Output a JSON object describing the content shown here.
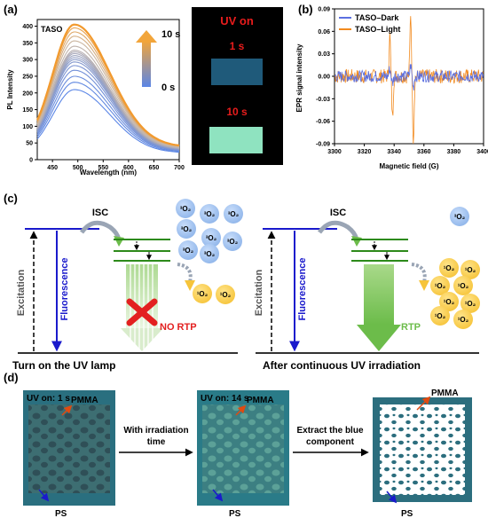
{
  "panel_a": {
    "label": "(a)",
    "sample": "TASO",
    "ylabel": "PL Intensity",
    "xlabel": "Wavelength (nm)",
    "arrow_top": "10 s",
    "arrow_bottom": "0 s",
    "photo_title": "UV on",
    "photo_t1": "1 s",
    "photo_t2": "10 s",
    "colors": {
      "start": "#5b86e6",
      "end": "#f29a2e",
      "photo_bg": "#000000",
      "glow": "#8fe3c0",
      "dim": "#1f5a7a"
    }
  },
  "panel_b": {
    "label": "(b)",
    "ylabel": "EPR signal intensity",
    "xlabel": "Magnetic field (G)",
    "legend": [
      "TASO–Dark",
      "TASO–Light"
    ],
    "colors": {
      "dark": "#5b6fe0",
      "light": "#f28a1e"
    }
  },
  "panel_c": {
    "label": "(c)",
    "left": {
      "isc": "ISC",
      "excitation": "Excitation",
      "fluorescence": "Fluorescence",
      "no_rtp": "NO RTP",
      "caption": "Turn on the UV lamp",
      "triplet_o2": "³O₂",
      "singlet_o2": "¹O₂"
    },
    "right": {
      "isc": "ISC",
      "excitation": "Excitation",
      "fluorescence": "Fluorescence",
      "rtp": "RTP",
      "caption": "After continuous UV irradiation",
      "triplet_o2": "³O₂",
      "singlet_o2": "¹O₂"
    }
  },
  "panel_d": {
    "label": "(d)",
    "img1_title": "UV on: 1 s",
    "img2_title": "UV on: 14 s",
    "arrow1_text": [
      "With irradiation",
      "time"
    ],
    "arrow2_text": [
      "Extract the blue",
      "component"
    ],
    "pmma": "PMMA",
    "ps": "PS"
  },
  "chart_data": [
    {
      "type": "line",
      "title": "",
      "xlabel": "Wavelength (nm)",
      "ylabel": "PL Intensity",
      "xlim": [
        420,
        700
      ],
      "ylim": [
        0,
        420
      ],
      "xticks": [
        450,
        500,
        550,
        600,
        650,
        700
      ],
      "yticks": [
        0,
        50,
        100,
        150,
        200,
        250,
        300,
        350,
        400
      ],
      "x": [
        420,
        430,
        440,
        450,
        460,
        470,
        480,
        490,
        500,
        510,
        520,
        530,
        540,
        550,
        560,
        570,
        580,
        590,
        600,
        610,
        620,
        630,
        640,
        650,
        660,
        670,
        680,
        690,
        700
      ],
      "series_peaks": [
        210,
        232,
        250,
        268,
        282,
        293,
        300,
        306,
        312,
        318,
        323,
        328,
        340,
        356,
        370,
        383,
        395,
        405
      ],
      "series_baseline": [
        20,
        22,
        24,
        25,
        26,
        27,
        28,
        29,
        30,
        30,
        31,
        32,
        34,
        35,
        36,
        37,
        38,
        38
      ],
      "peak_x": 493
    },
    {
      "type": "line",
      "title": "",
      "xlabel": "Magnetic field (G)",
      "ylabel": "EPR signal intensity",
      "xlim": [
        3300,
        3400
      ],
      "ylim": [
        -0.09,
        0.09
      ],
      "xticks": [
        3300,
        3320,
        3340,
        3360,
        3380,
        3400
      ],
      "yticks": [
        0.09,
        0.06,
        0.03,
        0.0,
        -0.03,
        -0.06,
        -0.09
      ],
      "series": [
        {
          "name": "TASO–Dark",
          "features": [
            [
              3338,
              0.01,
              -0.01
            ],
            [
              3352,
              0.015,
              -0.015
            ]
          ]
        },
        {
          "name": "TASO–Light",
          "features": [
            [
              3338,
              0.055,
              -0.055
            ],
            [
              3352,
              0.085,
              -0.085
            ]
          ]
        }
      ],
      "noise": 0.012,
      "legend": "top-left"
    }
  ]
}
